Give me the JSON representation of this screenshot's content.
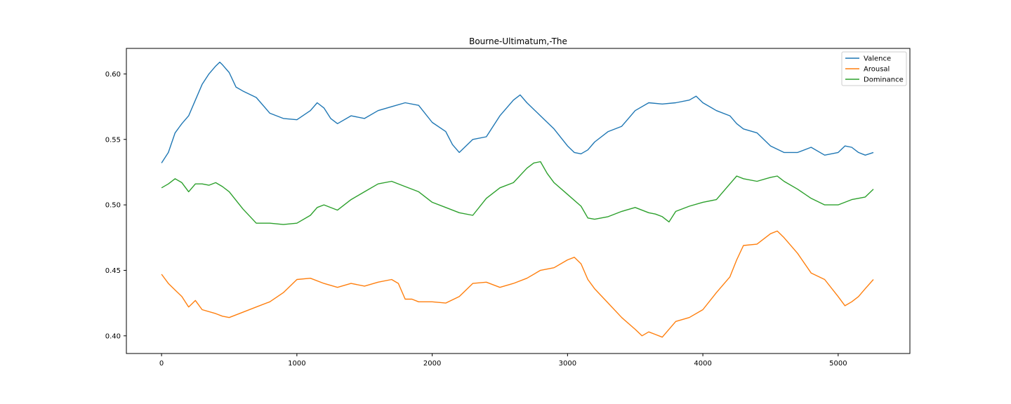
{
  "chart_data": {
    "type": "line",
    "title": "Bourne-Ultimatum,-The",
    "xlabel": "",
    "ylabel": "",
    "xlim": [
      -260,
      5530
    ],
    "ylim": [
      0.3865,
      0.6195
    ],
    "xticks": [
      0,
      1000,
      2000,
      3000,
      4000,
      5000
    ],
    "xtick_labels": [
      "0",
      "1000",
      "2000",
      "3000",
      "4000",
      "5000"
    ],
    "yticks": [
      0.4,
      0.45,
      0.5,
      0.55,
      0.6
    ],
    "ytick_labels": [
      "0.40",
      "0.45",
      "0.50",
      "0.55",
      "0.60"
    ],
    "grid": false,
    "legend": "top-right",
    "series": [
      {
        "name": "Valence",
        "color": "#1f77b4",
        "x": [
          0,
          50,
          100,
          150,
          200,
          250,
          300,
          350,
          400,
          430,
          450,
          500,
          550,
          600,
          700,
          800,
          900,
          1000,
          1100,
          1150,
          1200,
          1250,
          1300,
          1400,
          1500,
          1600,
          1700,
          1800,
          1900,
          2000,
          2100,
          2150,
          2200,
          2300,
          2400,
          2500,
          2600,
          2650,
          2700,
          2800,
          2900,
          3000,
          3050,
          3100,
          3150,
          3200,
          3300,
          3400,
          3500,
          3600,
          3700,
          3800,
          3900,
          3950,
          4000,
          4100,
          4200,
          4250,
          4300,
          4400,
          4500,
          4600,
          4700,
          4800,
          4900,
          5000,
          5050,
          5100,
          5150,
          5200,
          5260
        ],
        "y": [
          0.532,
          0.54,
          0.555,
          0.562,
          0.568,
          0.58,
          0.592,
          0.6,
          0.606,
          0.609,
          0.607,
          0.601,
          0.59,
          0.587,
          0.582,
          0.57,
          0.566,
          0.565,
          0.572,
          0.578,
          0.574,
          0.566,
          0.562,
          0.568,
          0.566,
          0.572,
          0.575,
          0.578,
          0.576,
          0.563,
          0.556,
          0.546,
          0.54,
          0.55,
          0.552,
          0.568,
          0.58,
          0.584,
          0.578,
          0.568,
          0.558,
          0.545,
          0.54,
          0.539,
          0.542,
          0.548,
          0.556,
          0.56,
          0.572,
          0.578,
          0.577,
          0.578,
          0.58,
          0.583,
          0.578,
          0.572,
          0.568,
          0.562,
          0.558,
          0.555,
          0.545,
          0.54,
          0.54,
          0.544,
          0.538,
          0.54,
          0.545,
          0.544,
          0.54,
          0.538,
          0.54
        ]
      },
      {
        "name": "Arousal",
        "color": "#ff7f0e",
        "x": [
          0,
          50,
          100,
          150,
          200,
          250,
          300,
          400,
          450,
          500,
          600,
          700,
          800,
          900,
          1000,
          1100,
          1200,
          1300,
          1400,
          1500,
          1600,
          1700,
          1750,
          1800,
          1850,
          1900,
          2000,
          2100,
          2200,
          2300,
          2400,
          2500,
          2600,
          2700,
          2800,
          2900,
          3000,
          3050,
          3100,
          3150,
          3200,
          3300,
          3400,
          3500,
          3550,
          3600,
          3650,
          3700,
          3800,
          3900,
          4000,
          4100,
          4200,
          4250,
          4300,
          4400,
          4500,
          4550,
          4600,
          4700,
          4800,
          4900,
          5000,
          5050,
          5100,
          5150,
          5200,
          5260
        ],
        "y": [
          0.447,
          0.44,
          0.435,
          0.43,
          0.422,
          0.427,
          0.42,
          0.417,
          0.415,
          0.414,
          0.418,
          0.422,
          0.426,
          0.433,
          0.443,
          0.444,
          0.44,
          0.437,
          0.44,
          0.438,
          0.441,
          0.443,
          0.44,
          0.428,
          0.428,
          0.426,
          0.426,
          0.425,
          0.43,
          0.44,
          0.441,
          0.437,
          0.44,
          0.444,
          0.45,
          0.452,
          0.458,
          0.46,
          0.455,
          0.443,
          0.436,
          0.425,
          0.414,
          0.405,
          0.4,
          0.403,
          0.401,
          0.399,
          0.411,
          0.414,
          0.42,
          0.433,
          0.445,
          0.458,
          0.469,
          0.47,
          0.478,
          0.48,
          0.475,
          0.463,
          0.448,
          0.443,
          0.43,
          0.423,
          0.426,
          0.43,
          0.436,
          0.443
        ]
      },
      {
        "name": "Dominance",
        "color": "#2ca02c",
        "x": [
          0,
          50,
          100,
          150,
          200,
          250,
          300,
          350,
          400,
          450,
          500,
          600,
          700,
          800,
          900,
          1000,
          1100,
          1150,
          1200,
          1300,
          1400,
          1500,
          1600,
          1700,
          1800,
          1900,
          2000,
          2100,
          2200,
          2300,
          2400,
          2500,
          2600,
          2700,
          2750,
          2800,
          2850,
          2900,
          3000,
          3100,
          3150,
          3200,
          3300,
          3400,
          3500,
          3600,
          3650,
          3700,
          3750,
          3800,
          3900,
          4000,
          4100,
          4200,
          4250,
          4300,
          4400,
          4500,
          4550,
          4600,
          4700,
          4800,
          4900,
          5000,
          5100,
          5200,
          5260
        ],
        "y": [
          0.513,
          0.516,
          0.52,
          0.517,
          0.51,
          0.516,
          0.516,
          0.515,
          0.517,
          0.514,
          0.51,
          0.497,
          0.486,
          0.486,
          0.485,
          0.486,
          0.492,
          0.498,
          0.5,
          0.496,
          0.504,
          0.51,
          0.516,
          0.518,
          0.514,
          0.51,
          0.502,
          0.498,
          0.494,
          0.492,
          0.505,
          0.513,
          0.517,
          0.528,
          0.532,
          0.533,
          0.524,
          0.517,
          0.508,
          0.499,
          0.49,
          0.489,
          0.491,
          0.495,
          0.498,
          0.494,
          0.493,
          0.491,
          0.487,
          0.495,
          0.499,
          0.502,
          0.504,
          0.516,
          0.522,
          0.52,
          0.518,
          0.521,
          0.522,
          0.518,
          0.512,
          0.505,
          0.5,
          0.5,
          0.504,
          0.506,
          0.512
        ]
      }
    ]
  }
}
